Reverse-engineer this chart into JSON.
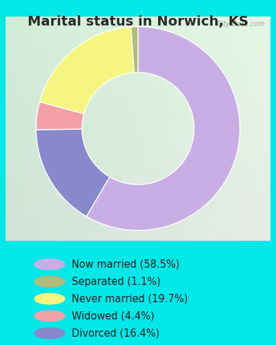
{
  "title": "Marital status in Norwich, KS",
  "slices": [
    58.5,
    16.4,
    4.4,
    19.7,
    1.1
  ],
  "labels_legend": [
    "Now married (58.5%)",
    "Separated (1.1%)",
    "Never married (19.7%)",
    "Widowed (4.4%)",
    "Divorced (16.4%)"
  ],
  "legend_colors": [
    "#c9aee5",
    "#b0bc7a",
    "#f5f580",
    "#f4a0a8",
    "#8888cc"
  ],
  "slice_colors": [
    "#c9aee5",
    "#8888cc",
    "#f4a0a8",
    "#f5f580",
    "#b0bc7a"
  ],
  "background_cyan": "#00e8e8",
  "background_chart": "#d5edd8",
  "title_fontsize": 14,
  "legend_fontsize": 11,
  "watermark": "City-Data.com"
}
